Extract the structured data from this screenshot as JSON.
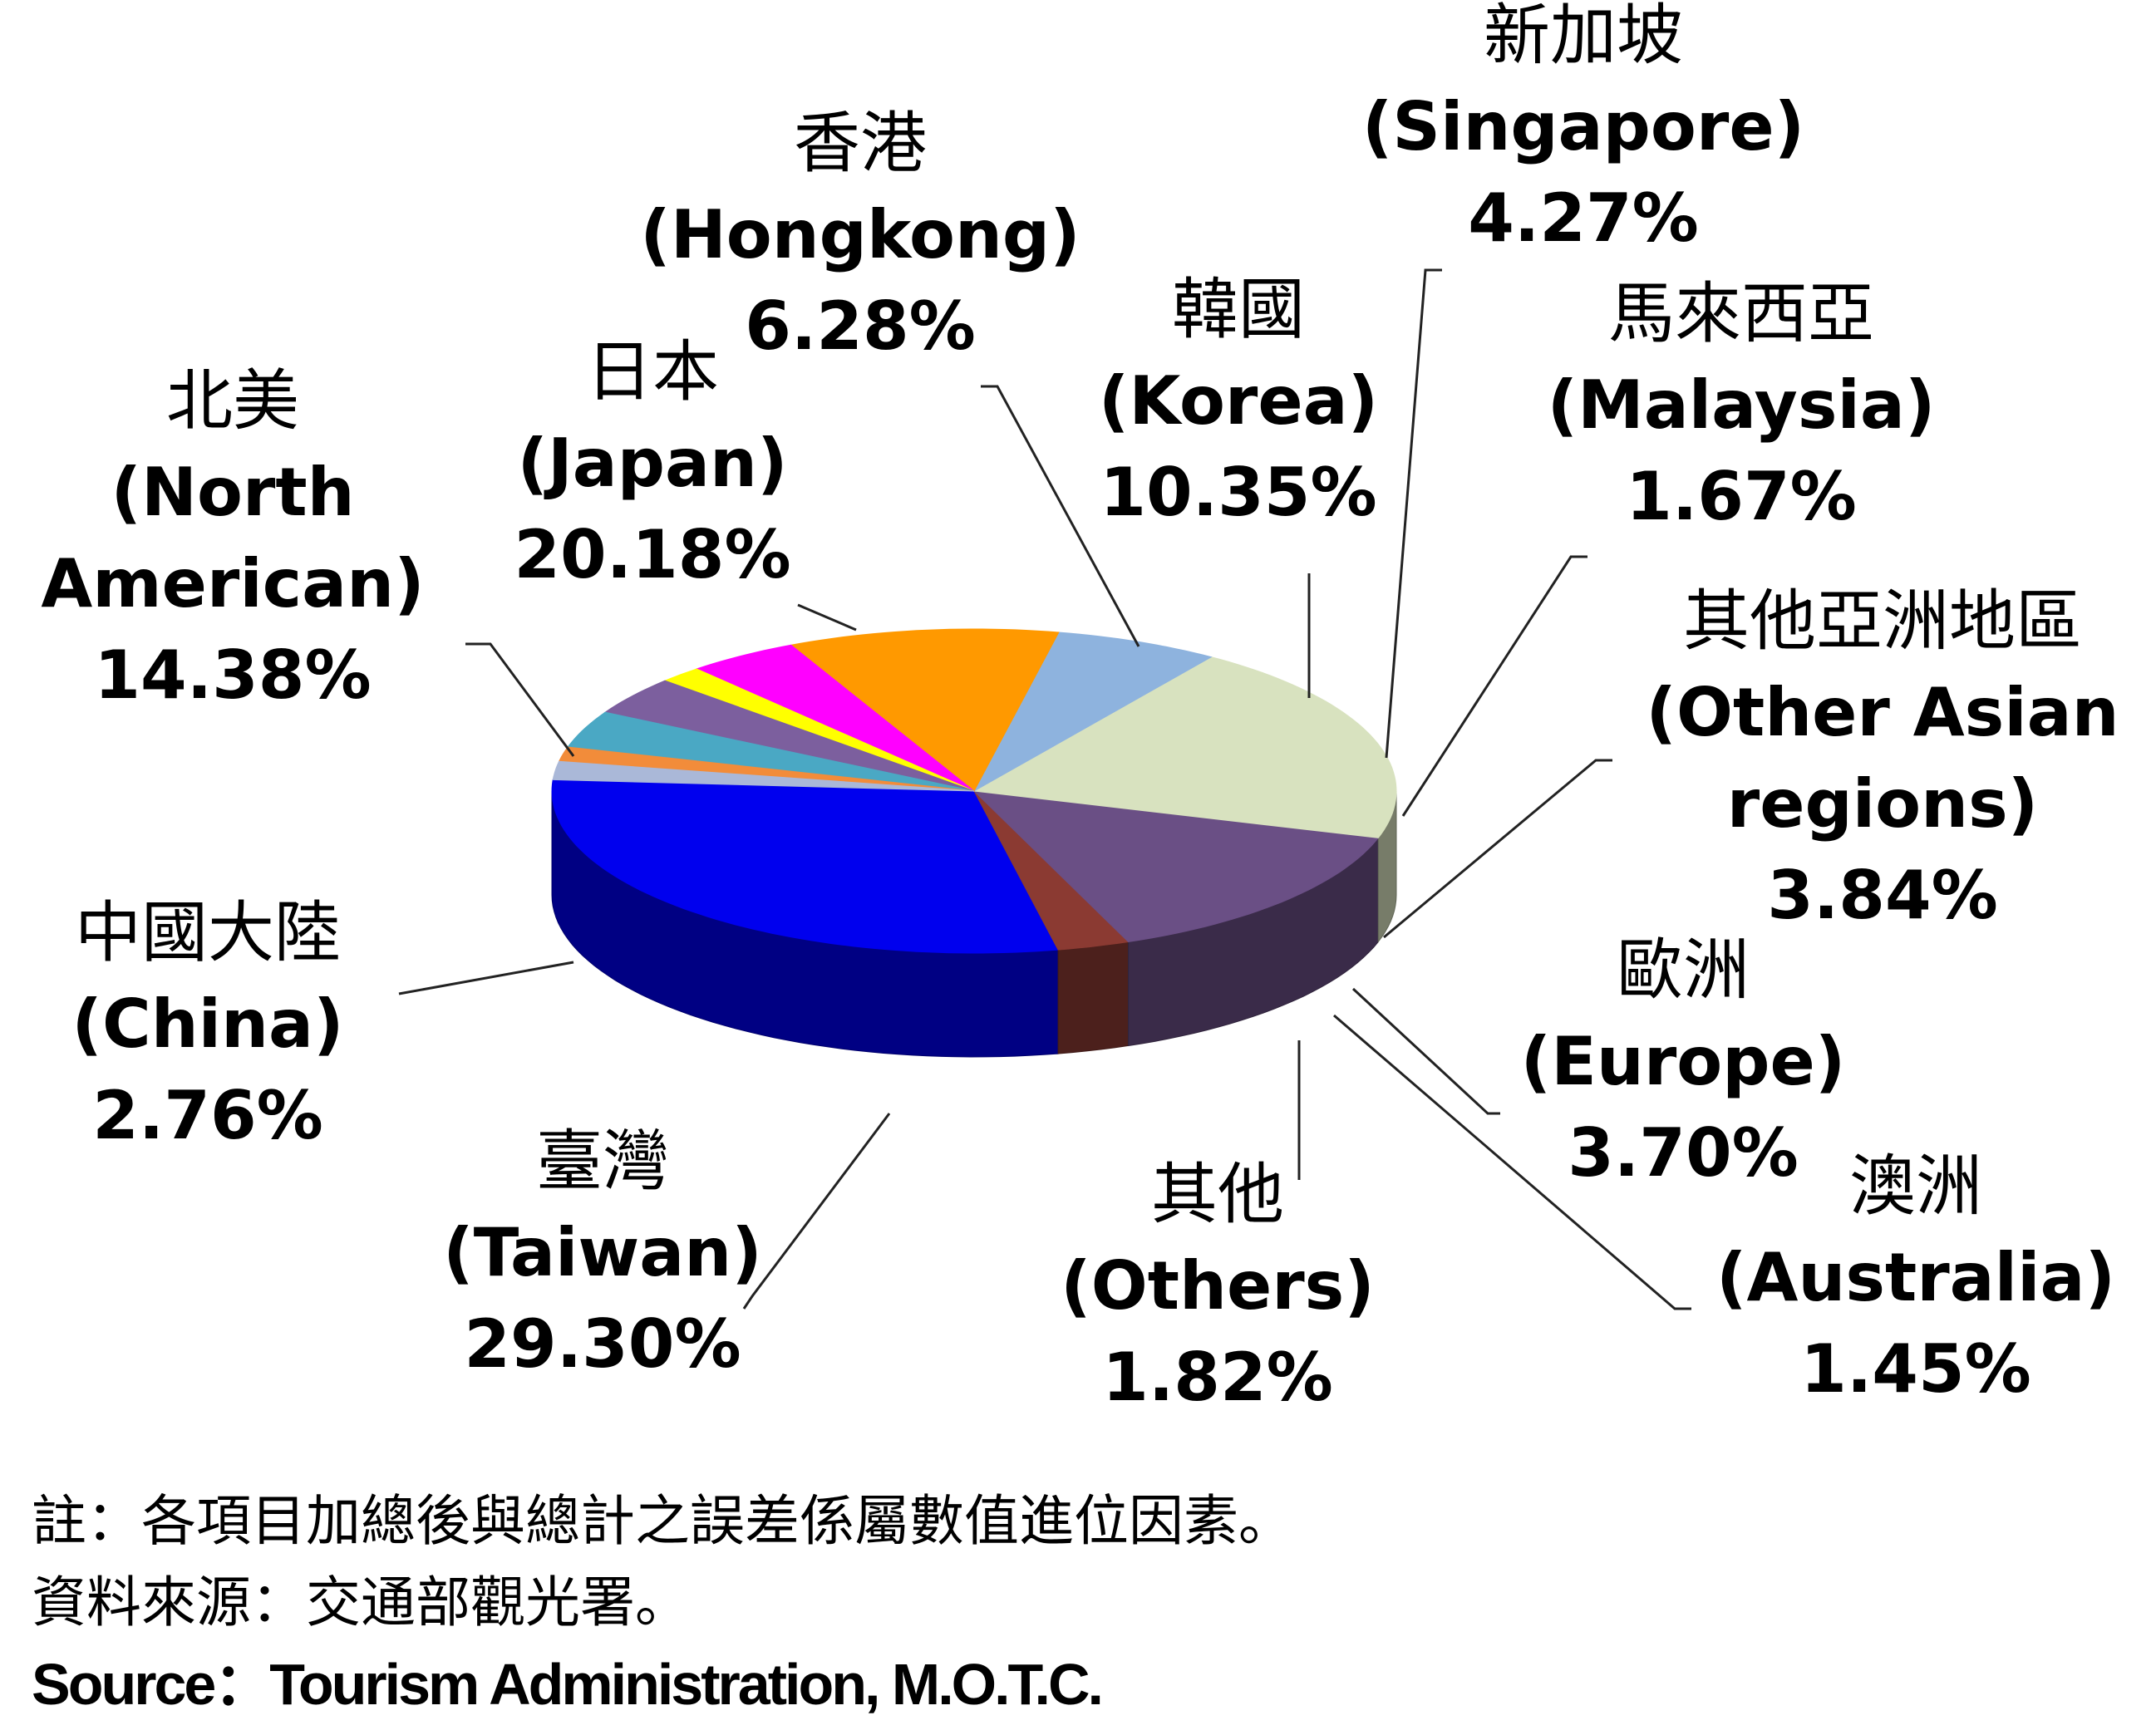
{
  "chart_data": {
    "type": "pie",
    "slices": [
      {
        "name_zh": "臺灣",
        "name_en": "(Taiwan)",
        "value": 29.3,
        "value_label": "29.30%",
        "color": "#0000ee"
      },
      {
        "name_zh": "中國大陸",
        "name_en": "(China)",
        "value": 2.76,
        "value_label": "2.76%",
        "color": "#8b3a32"
      },
      {
        "name_zh": "北美",
        "name_en_lines": [
          "(North",
          "American)"
        ],
        "value": 14.38,
        "value_label": "14.38%",
        "color": "#6a4f85"
      },
      {
        "name_zh": "日本",
        "name_en": "(Japan)",
        "value": 20.18,
        "value_label": "20.18%",
        "color": "#d8e2bf"
      },
      {
        "name_zh": "香港",
        "name_en": "(Hongkong)",
        "value": 6.28,
        "value_label": "6.28%",
        "color": "#8eb3de"
      },
      {
        "name_zh": "韓國",
        "name_en": "(Korea)",
        "value": 10.35,
        "value_label": "10.35%",
        "color": "#ff9900"
      },
      {
        "name_zh": "新加坡",
        "name_en": "(Singapore)",
        "value": 4.27,
        "value_label": "4.27%",
        "color": "#ff00ff"
      },
      {
        "name_zh": "馬來西亞",
        "name_en": "(Malaysia)",
        "value": 1.67,
        "value_label": "1.67%",
        "color": "#ffff00"
      },
      {
        "name_zh": "其他亞洲地區",
        "name_en_lines": [
          "(Other Asian",
          "regions)"
        ],
        "value": 3.84,
        "value_label": "3.84%",
        "color": "#7c5f9e"
      },
      {
        "name_zh": "歐洲",
        "name_en": "(Europe)",
        "value": 3.7,
        "value_label": "3.70%",
        "color": "#4aa8c4"
      },
      {
        "name_zh": "澳洲",
        "name_en": "(Australia)",
        "value": 1.45,
        "value_label": "1.45%",
        "color": "#f28c3a"
      },
      {
        "name_zh": "其他",
        "name_en": "(Others)",
        "value": 1.82,
        "value_label": "1.82%",
        "color": "#aab8d8"
      }
    ]
  },
  "notes": {
    "note": "註：各項目加總後與總計之誤差係屬數值進位因素。",
    "source_zh": "資料來源：交通部觀光署。",
    "source_en": "Source：Tourism Administration, M.O.T.C."
  }
}
